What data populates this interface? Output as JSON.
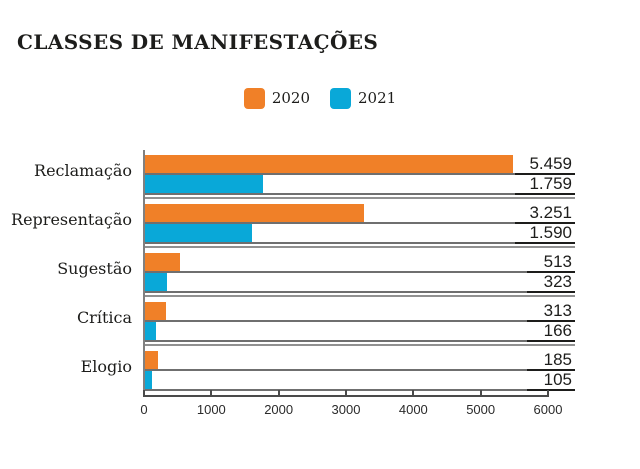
{
  "chart_data": {
    "type": "bar",
    "orientation": "horizontal",
    "title": "CLASSES DE MANIFESTAÇÕES",
    "categories": [
      "Reclamação",
      "Representação",
      "Sugestão",
      "Crítica",
      "Elogio"
    ],
    "series": [
      {
        "name": "2020",
        "color": "#F08028",
        "values": [
          5459,
          3251,
          513,
          313,
          185
        ],
        "display": [
          "5.459",
          "3.251",
          "513",
          "313",
          "185"
        ]
      },
      {
        "name": "2021",
        "color": "#09A8D8",
        "values": [
          1759,
          1590,
          323,
          166,
          105
        ],
        "display": [
          "1.759",
          "1.590",
          "323",
          "166",
          "105"
        ]
      }
    ],
    "xlim": [
      0,
      6000
    ],
    "x_ticks": [
      "0",
      "1000",
      "2000",
      "3000",
      "4000",
      "5000",
      "6000"
    ],
    "legend_position": "top-center",
    "grid": false,
    "line_colors": {
      "row_line": "#6f6f6f",
      "group_separator": "#919191",
      "value_underline": "#1d1d1b",
      "axis": "#4a4a4a"
    }
  }
}
